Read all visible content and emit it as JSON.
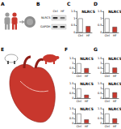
{
  "figure": {
    "letters": [
      "A",
      "B",
      "C",
      "D",
      "E",
      "F",
      "G"
    ],
    "blot": {
      "bands": [
        "NLRC5",
        "GAPDH"
      ],
      "lanes": [
        "Ctrl",
        "HF"
      ]
    }
  },
  "chart_data": [
    {
      "type": "bar",
      "title": "NLRC5",
      "categories": [
        "Ctrl",
        "HF"
      ],
      "values": [
        1,
        0.45
      ],
      "colors": [
        "#ffffff",
        "#c8372d"
      ],
      "ylim": [
        0,
        1.5
      ],
      "yticks": [
        0,
        0.5,
        1,
        1.5
      ]
    },
    {
      "type": "bar",
      "title": "NLRC5",
      "categories": [
        "Ctrl",
        "HF"
      ],
      "values": [
        1,
        0.4
      ],
      "colors": [
        "#ffffff",
        "#c8372d"
      ],
      "ylim": [
        0,
        1.5
      ],
      "yticks": [
        0,
        0.5,
        1,
        1.5
      ]
    },
    {
      "type": "bar",
      "title": "NLRC5",
      "categories": [
        "Ctrl",
        "HF"
      ],
      "values": [
        1,
        0.5
      ],
      "colors": [
        "#ffffff",
        "#c8372d"
      ],
      "ylim": [
        0,
        1.5
      ],
      "yticks": [
        0,
        0.5,
        1,
        1.5
      ]
    },
    {
      "type": "bar",
      "title": "NLRC5",
      "categories": [
        "Ctrl",
        "HF"
      ],
      "values": [
        1,
        0.55
      ],
      "colors": [
        "#ffffff",
        "#c8372d"
      ],
      "ylim": [
        0,
        1.5
      ],
      "yticks": [
        0,
        0.5,
        1,
        1.5
      ]
    },
    {
      "type": "bar",
      "title": "NLRC5",
      "categories": [
        "Ctrl",
        "HF"
      ],
      "values": [
        1,
        0.35
      ],
      "colors": [
        "#ffffff",
        "#c8372d"
      ],
      "ylim": [
        0,
        1.5
      ],
      "yticks": [
        0,
        0.5,
        1,
        1.5
      ]
    },
    {
      "type": "bar",
      "title": "NLRC5",
      "categories": [
        "Ctrl",
        "HF"
      ],
      "values": [
        1,
        0.6
      ],
      "colors": [
        "#ffffff",
        "#c8372d"
      ],
      "ylim": [
        0,
        1.5
      ],
      "yticks": [
        0,
        0.5,
        1,
        1.5
      ]
    },
    {
      "type": "bar",
      "title": "NLRC5",
      "categories": [
        "Ctrl",
        "HF"
      ],
      "values": [
        1,
        0.4
      ],
      "colors": [
        "#ffffff",
        "#c8372d"
      ],
      "ylim": [
        0,
        1.5
      ],
      "yticks": [
        0,
        0.5,
        1,
        1.5
      ]
    },
    {
      "type": "bar",
      "title": "NLRC5",
      "categories": [
        "Ctrl",
        "HF"
      ],
      "values": [
        1,
        0.5
      ],
      "colors": [
        "#ffffff",
        "#c8372d"
      ],
      "ylim": [
        0,
        1.5
      ],
      "yticks": [
        0,
        0.5,
        1,
        1.5
      ]
    }
  ]
}
